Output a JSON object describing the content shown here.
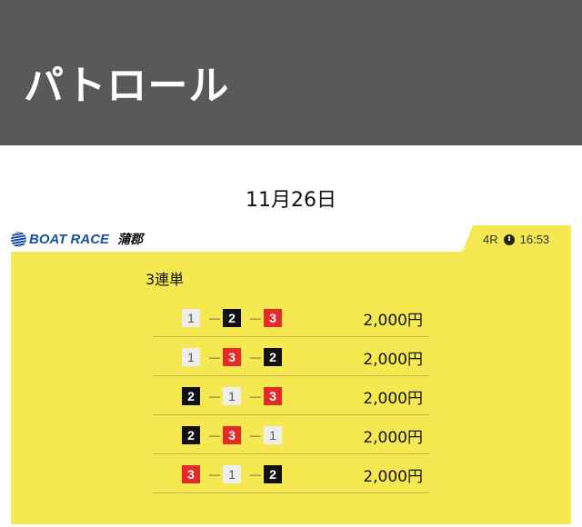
{
  "header": {
    "title": "パトロール"
  },
  "date": "11月26日",
  "logo": {
    "brand": "BOAT RACE",
    "venue": "蒲郡"
  },
  "race": {
    "number": "4R",
    "time": "16:53"
  },
  "bet": {
    "type": "3連単",
    "rows": [
      {
        "combo": [
          "1",
          "2",
          "3"
        ],
        "amount": "2,000円"
      },
      {
        "combo": [
          "1",
          "3",
          "2"
        ],
        "amount": "2,000円"
      },
      {
        "combo": [
          "2",
          "1",
          "3"
        ],
        "amount": "2,000円"
      },
      {
        "combo": [
          "2",
          "3",
          "1"
        ],
        "amount": "2,000円"
      },
      {
        "combo": [
          "3",
          "1",
          "2"
        ],
        "amount": "2,000円"
      }
    ]
  },
  "colors": {
    "header_bg": "#595959",
    "panel": "#f5e851",
    "boat1": "#eeeeee",
    "boat2": "#111111",
    "boat3": "#e52a2a"
  }
}
